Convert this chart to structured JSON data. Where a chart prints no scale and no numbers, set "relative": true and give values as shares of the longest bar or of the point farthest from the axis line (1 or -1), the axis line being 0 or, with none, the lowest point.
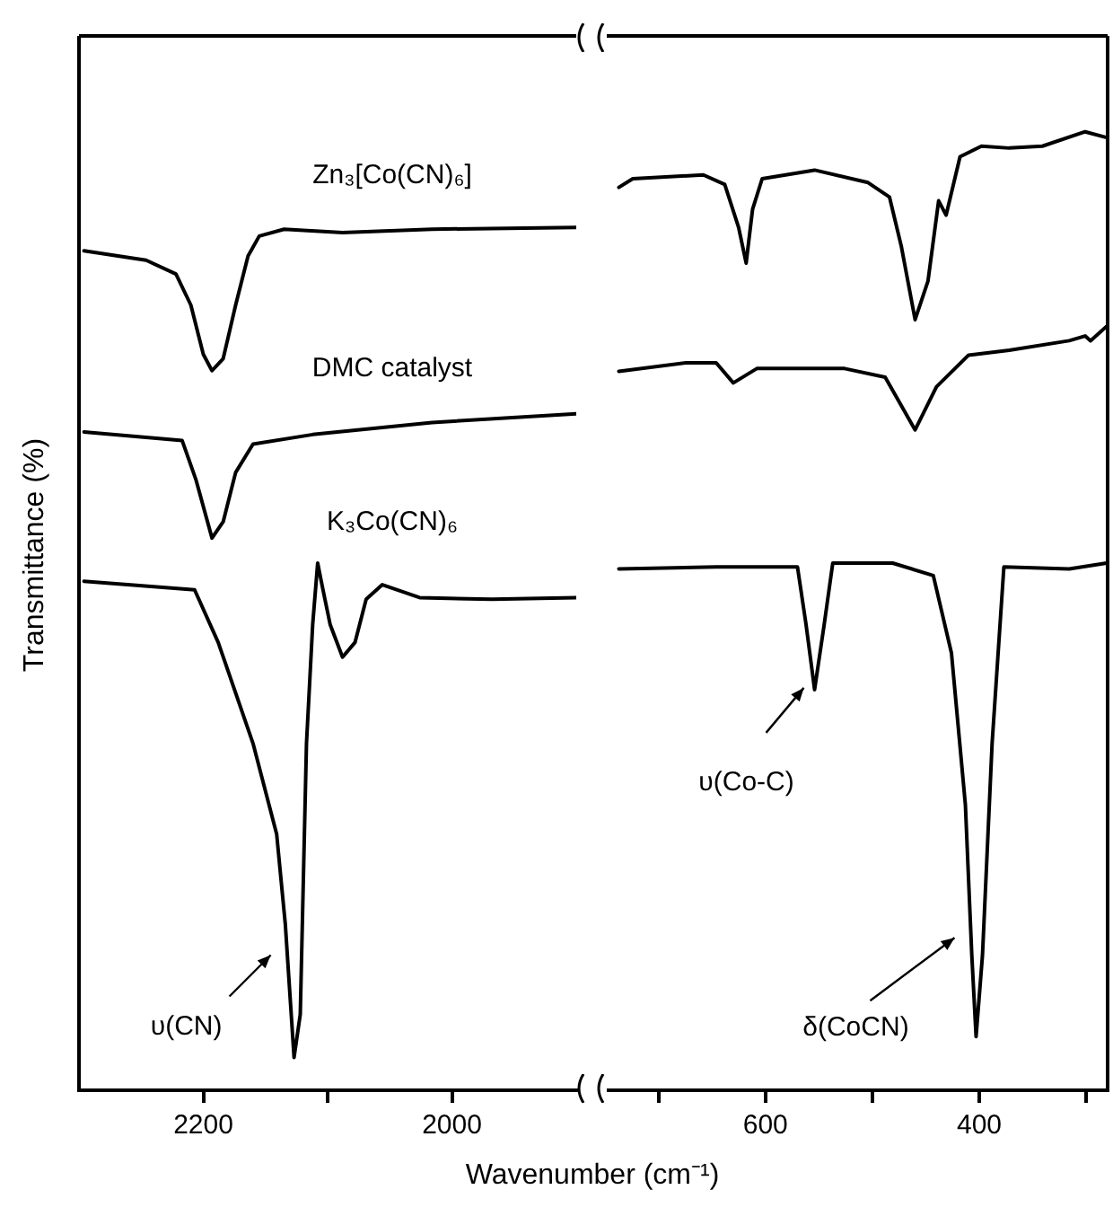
{
  "chart_data": [
    {
      "type": "line",
      "relative": true,
      "ylabel": "Transmittance (%)",
      "xlabel": "Wavenumber (cm⁻¹)",
      "xlim": [
        2300,
        1900
      ],
      "xticks": [
        2200,
        {
          "value": 2100,
          "label": null
        },
        2000
      ],
      "grid": false,
      "legend": false,
      "marker": "none",
      "line_style": "solid",
      "series": [
        {
          "name": "Zn₃[Co(CN)₆]",
          "color": "#000000",
          "x": [
            2296,
            2246,
            2222,
            2210,
            2200,
            2193,
            2184,
            2174,
            2164,
            2155,
            2135,
            2088,
            2016,
            1900
          ],
          "values": [
            0.973,
            0.962,
            0.946,
            0.91,
            0.853,
            0.834,
            0.848,
            0.91,
            0.967,
            0.99,
            0.998,
            0.994,
            0.998,
            1.0
          ]
        },
        {
          "name": "DMC catalyst",
          "color": "#000000",
          "x": [
            2296,
            2217,
            2206,
            2193,
            2184,
            2174,
            2160,
            2112,
            2016,
            1900
          ],
          "values": [
            0.763,
            0.753,
            0.708,
            0.64,
            0.659,
            0.716,
            0.749,
            0.76,
            0.774,
            0.784
          ]
        },
        {
          "name": "K₃Co(CN)₆",
          "color": "#000000",
          "x": [
            2296,
            2207,
            2188,
            2160,
            2141,
            2134,
            2127,
            2122,
            2117,
            2112,
            2108,
            2104,
            2098,
            2088,
            2078,
            2069,
            2056,
            2026,
            1968,
            1900
          ],
          "values": [
            0.59,
            0.58,
            0.519,
            0.402,
            0.297,
            0.192,
            0.038,
            0.088,
            0.402,
            0.54,
            0.611,
            0.582,
            0.54,
            0.502,
            0.519,
            0.569,
            0.586,
            0.571,
            0.569,
            0.571
          ]
        }
      ],
      "annotations": [
        {
          "text": "υ(CN)",
          "x": 2127,
          "y": 0.038
        }
      ]
    },
    {
      "type": "line",
      "relative": true,
      "xlim": [
        750,
        280
      ],
      "xticks": [
        {
          "value": 700,
          "label": null
        },
        600,
        {
          "value": 500,
          "label": null
        },
        400,
        {
          "value": 300,
          "label": null
        }
      ],
      "grid": false,
      "legend": false,
      "marker": "none",
      "line_style": "solid",
      "series": [
        {
          "color": "#000000",
          "x": [
            737,
            724,
            658,
            638,
            625,
            618,
            612,
            603,
            554,
            504,
            484,
            473,
            460,
            448,
            438,
            431,
            418,
            398,
            372,
            341,
            301,
            281
          ],
          "values": [
            0.942,
            0.951,
            0.955,
            0.945,
            0.9,
            0.863,
            0.919,
            0.951,
            0.96,
            0.947,
            0.932,
            0.881,
            0.804,
            0.844,
            0.928,
            0.913,
            0.974,
            0.985,
            0.983,
            0.985,
            1.0,
            0.994
          ]
        },
        {
          "color": "#000000",
          "x": [
            737,
            674,
            646,
            630,
            608,
            526,
            488,
            460,
            440,
            410,
            372,
            316,
            301,
            296,
            281
          ],
          "values": [
            0.75,
            0.759,
            0.759,
            0.738,
            0.753,
            0.753,
            0.744,
            0.689,
            0.734,
            0.767,
            0.772,
            0.782,
            0.787,
            0.782,
            0.797
          ]
        },
        {
          "color": "#000000",
          "x": [
            737,
            646,
            570,
            562,
            554,
            545,
            537,
            481,
            443,
            426,
            413,
            407,
            403,
            397,
            388,
            377,
            316,
            281
          ],
          "values": [
            0.544,
            0.546,
            0.546,
            0.486,
            0.418,
            0.486,
            0.55,
            0.55,
            0.537,
            0.456,
            0.298,
            0.141,
            0.056,
            0.141,
            0.362,
            0.546,
            0.544,
            0.55
          ]
        }
      ],
      "annotations": [
        {
          "text": "υ(Co-C)",
          "x": 554,
          "y": 0.418
        },
        {
          "text": "δ(CoCN)",
          "x": 403,
          "y": 0.056
        }
      ]
    }
  ]
}
